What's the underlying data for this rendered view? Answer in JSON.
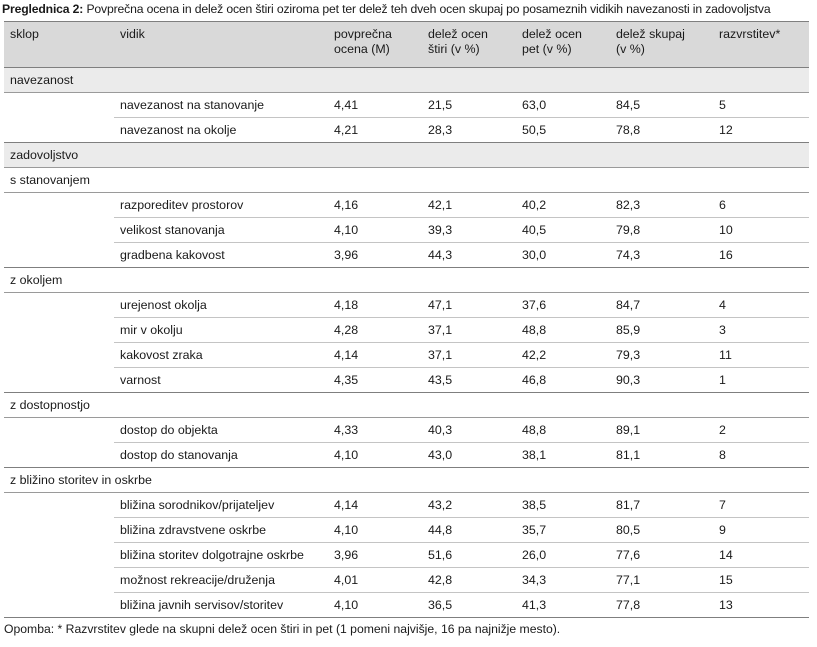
{
  "caption": {
    "label": "Preglednica 2:",
    "text": " Povprečna ocena in delež ocen štiri oziroma pet ter delež teh dveh ocen skupaj po posameznih vidikih navezanosti in zadovoljstva"
  },
  "headers": {
    "sklop": "sklop",
    "vidik": "vidik",
    "ocena_1": "povprečna",
    "ocena_2": "ocena (M)",
    "stiri_1": "delež ocen",
    "stiri_2": "štiri (v %)",
    "pet_1": "delež ocen",
    "pet_2": "pet (v %)",
    "skupaj_1": "delež skupaj",
    "skupaj_2": "(v %)",
    "razvrstitev": "razvrstitev*"
  },
  "groups": [
    {
      "section": "navezanost",
      "rows": [
        [
          "navezanost na stanovanje",
          "4,41",
          "21,5",
          "63,0",
          "84,5",
          "5"
        ],
        [
          "navezanost na okolje",
          "4,21",
          "28,3",
          "50,5",
          "78,8",
          "12"
        ]
      ]
    },
    {
      "section": "zadovoljstvo",
      "sub": "s stanovanjem",
      "rows": [
        [
          "razporeditev prostorov",
          "4,16",
          "42,1",
          "40,2",
          "82,3",
          "6"
        ],
        [
          "velikost stanovanja",
          "4,10",
          "39,3",
          "40,5",
          "79,8",
          "10"
        ],
        [
          "gradbena kakovost",
          "3,96",
          "44,3",
          "30,0",
          "74,3",
          "16"
        ]
      ]
    },
    {
      "sub": "z okoljem",
      "rows": [
        [
          "urejenost okolja",
          "4,18",
          "47,1",
          "37,6",
          "84,7",
          "4"
        ],
        [
          "mir v okolju",
          "4,28",
          "37,1",
          "48,8",
          "85,9",
          "3"
        ],
        [
          "kakovost zraka",
          "4,14",
          "37,1",
          "42,2",
          "79,3",
          "11"
        ],
        [
          "varnost",
          "4,35",
          "43,5",
          "46,8",
          "90,3",
          "1"
        ]
      ]
    },
    {
      "sub": "z dostopnostjo",
      "rows": [
        [
          "dostop do objekta",
          "4,33",
          "40,3",
          "48,8",
          "89,1",
          "2"
        ],
        [
          "dostop do stanovanja",
          "4,10",
          "43,0",
          "38,1",
          "81,1",
          "8"
        ]
      ]
    },
    {
      "sub": "z bližino storitev in oskrbe",
      "rows": [
        [
          "bližina sorodnikov/prijateljev",
          "4,14",
          "43,2",
          "38,5",
          "81,7",
          "7"
        ],
        [
          "bližina zdravstvene oskrbe",
          "4,10",
          "44,8",
          "35,7",
          "80,5",
          "9"
        ],
        [
          "bližina storitev dolgotrajne oskrbe",
          "3,96",
          "51,6",
          "26,0",
          "77,6",
          "14"
        ],
        [
          "možnost rekreacije/druženja",
          "4,01",
          "42,8",
          "34,3",
          "77,1",
          "15"
        ],
        [
          "bližina javnih servisov/storitev",
          "4,10",
          "36,5",
          "41,3",
          "77,8",
          "13"
        ]
      ]
    }
  ],
  "footnote": "Opomba: * Razvrstitev glede na skupni delež ocen štiri in pet (1 pomeni najvišje, 16 pa najnižje mesto)."
}
